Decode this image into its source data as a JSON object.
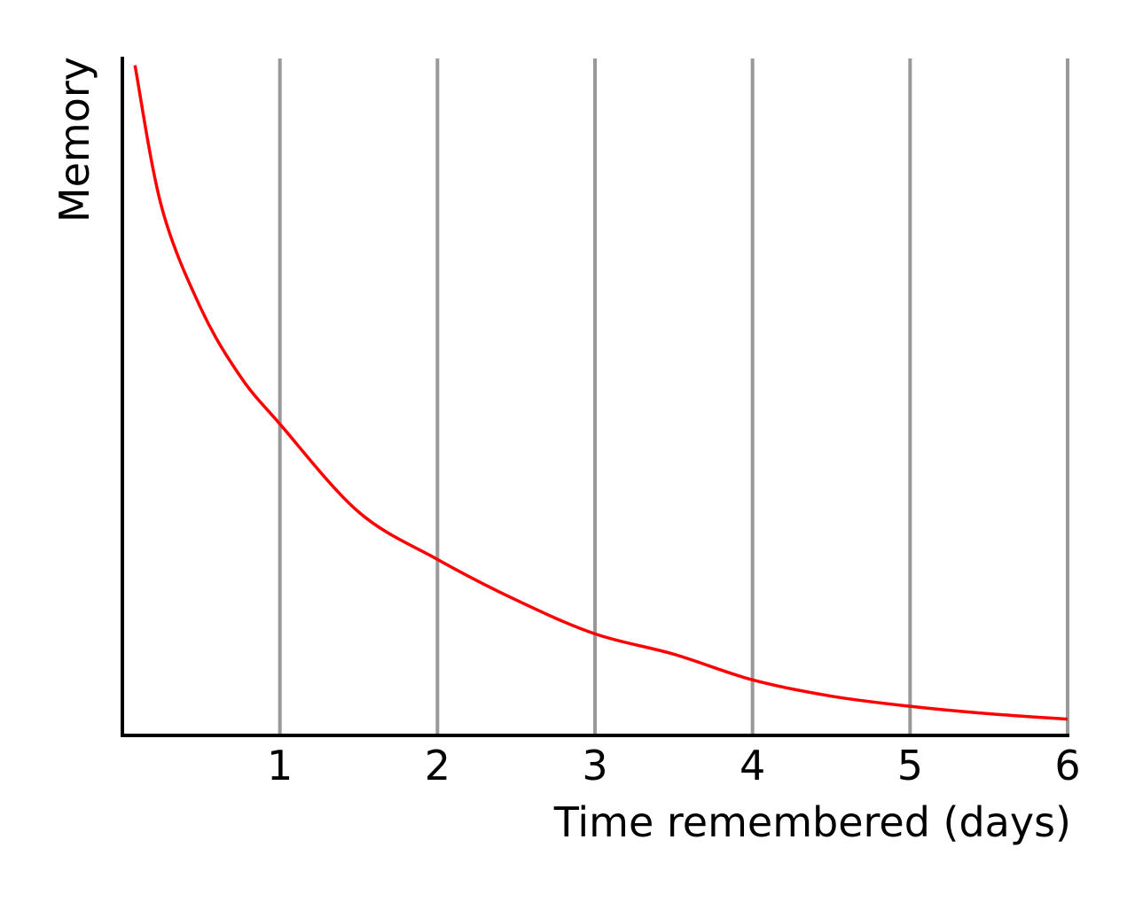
{
  "chart_data": {
    "type": "line",
    "title": "",
    "xlabel": "Time remembered (days)",
    "ylabel": "Memory",
    "x_ticks": [
      "1",
      "2",
      "3",
      "4",
      "5",
      "6"
    ],
    "xlim": [
      0,
      6
    ],
    "ylim": [
      0,
      1
    ],
    "grid": "vertical",
    "colors": {
      "series": "#ff0000",
      "grid": "#999999",
      "axis": "#000000"
    },
    "series": [
      {
        "name": "",
        "x": [
          0.08,
          0.25,
          0.5,
          0.75,
          1,
          1.5,
          2,
          2.5,
          3,
          3.5,
          4,
          4.5,
          5,
          5.5,
          6
        ],
        "values": [
          0.99,
          0.78,
          0.63,
          0.53,
          0.46,
          0.33,
          0.26,
          0.2,
          0.15,
          0.12,
          0.082,
          0.058,
          0.043,
          0.032,
          0.024
        ]
      }
    ]
  }
}
